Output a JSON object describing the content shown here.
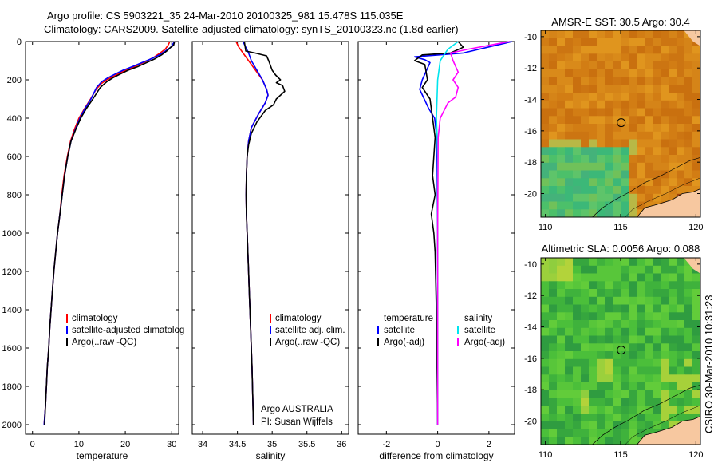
{
  "title": {
    "line1": "Argo profile: CS 5903221_35 24-Mar-2010 20100325_981 15.478S 115.035E",
    "line2": "Climatology: CARS2009. Satellite-adjusted climatology: synTS_20100323.nc (1.8d earlier)"
  },
  "colors": {
    "climatology": "#ff0000",
    "satellite": "#0000ff",
    "argo": "#000000",
    "satellite_salinity": "#00e5ee",
    "argo_salinity": "#ff00ff",
    "land": "#f7c8a0"
  },
  "depth_axis": {
    "ylim": [
      0,
      2050
    ],
    "ticks": [
      0,
      200,
      400,
      600,
      800,
      1000,
      1200,
      1400,
      1600,
      1800,
      2000
    ],
    "inverted": true
  },
  "chart_data": [
    {
      "type": "line",
      "id": "temperature",
      "xlabel": "temperature",
      "xlim": [
        -1.5,
        31.5
      ],
      "xticks": [
        0,
        10,
        20,
        30
      ],
      "xtick_labels": [
        "0",
        "10",
        "20",
        "30"
      ],
      "legend": [
        "climatology",
        "satellite-adjusted climatolog",
        "Argo(..raw -QC)"
      ],
      "series": [
        {
          "name": "climatology",
          "color": "#ff0000",
          "x": [
            29.6,
            29.2,
            28.6,
            27.5,
            26.3,
            24.8,
            23.0,
            21.2,
            19.2,
            17.6,
            16.0,
            14.8,
            13.7,
            12.5,
            11.2,
            10.0,
            9.0,
            8.2,
            7.5,
            6.8,
            6.3,
            5.9,
            5.4,
            5.0,
            4.6,
            4.3,
            4.0,
            3.7,
            3.5,
            3.2,
            3.0,
            2.8,
            2.5
          ],
          "y": [
            0,
            20,
            40,
            60,
            80,
            100,
            120,
            140,
            160,
            180,
            200,
            220,
            250,
            300,
            350,
            400,
            460,
            520,
            600,
            700,
            800,
            900,
            1000,
            1100,
            1200,
            1300,
            1400,
            1500,
            1600,
            1700,
            1800,
            1900,
            2000
          ]
        },
        {
          "name": "satellite-adjusted climatology",
          "color": "#0000ff",
          "x": [
            30.6,
            30.2,
            29.8,
            28.6,
            27.3,
            25.6,
            23.6,
            21.6,
            19.5,
            17.8,
            16.2,
            14.9,
            13.8,
            12.6,
            11.3,
            10.2,
            9.2,
            8.3,
            7.6,
            6.9,
            6.4,
            5.9,
            5.4,
            5.0,
            4.6,
            4.3,
            4.0,
            3.7,
            3.5,
            3.2,
            3.0,
            2.8,
            2.5
          ],
          "y": [
            0,
            15,
            30,
            50,
            70,
            90,
            110,
            130,
            150,
            170,
            190,
            210,
            240,
            300,
            350,
            400,
            460,
            520,
            600,
            700,
            800,
            900,
            1000,
            1100,
            1200,
            1300,
            1400,
            1500,
            1600,
            1700,
            1800,
            1900,
            2000
          ]
        },
        {
          "name": "Argo(..raw -QC)",
          "color": "#000000",
          "x": [
            30.6,
            30.5,
            30.4,
            29.8,
            28.9,
            27.8,
            26.4,
            24.6,
            22.8,
            20.6,
            18.9,
            17.3,
            16.0,
            14.6,
            13.0,
            11.6,
            10.4,
            9.3,
            8.3,
            7.6,
            6.9,
            6.4,
            5.9,
            5.4,
            5.0,
            4.6,
            4.3,
            4.0,
            3.7,
            3.5,
            3.2,
            3.0,
            2.8,
            2.6
          ],
          "y": [
            0,
            10,
            20,
            30,
            50,
            70,
            90,
            110,
            130,
            150,
            170,
            190,
            210,
            240,
            300,
            350,
            400,
            460,
            520,
            600,
            700,
            800,
            900,
            1000,
            1100,
            1200,
            1300,
            1400,
            1500,
            1600,
            1700,
            1800,
            1900,
            2000
          ]
        }
      ]
    },
    {
      "type": "line",
      "id": "salinity",
      "xlabel": "salinity",
      "xlim": [
        33.85,
        36.1
      ],
      "xticks": [
        34,
        34.5,
        35,
        35.5,
        36
      ],
      "xtick_labels": [
        "34",
        "34.5",
        "35",
        "35.5",
        "36"
      ],
      "legend": [
        "climatology",
        "satellite adj. clim.",
        "Argo(..raw -QC)"
      ],
      "credit_line1": "Argo AUSTRALIA",
      "credit_line2": "PI: Susan Wijffels",
      "series": [
        {
          "name": "climatology",
          "color": "#ff0000",
          "x": [
            34.48,
            34.52,
            34.58,
            34.66,
            34.76,
            34.86,
            34.92,
            34.94,
            34.9,
            34.8,
            34.7,
            34.66,
            34.64,
            34.63,
            34.625,
            34.63,
            34.64,
            34.65,
            34.66,
            34.67,
            34.69,
            34.7,
            34.71,
            34.72,
            34.73
          ],
          "y": [
            0,
            30,
            60,
            100,
            150,
            200,
            250,
            280,
            320,
            380,
            450,
            520,
            600,
            700,
            800,
            900,
            1000,
            1100,
            1200,
            1300,
            1500,
            1600,
            1700,
            1850,
            2000
          ]
        },
        {
          "name": "satellite adj. clim.",
          "color": "#0000ff",
          "x": [
            34.58,
            34.62,
            34.66,
            34.7,
            34.78,
            34.86,
            34.92,
            34.94,
            34.9,
            34.8,
            34.7,
            34.66,
            34.64,
            34.63,
            34.625,
            34.63,
            34.64,
            34.65,
            34.66,
            34.67,
            34.69,
            34.7,
            34.71,
            34.72,
            34.73
          ],
          "y": [
            0,
            30,
            60,
            100,
            150,
            200,
            250,
            280,
            320,
            380,
            450,
            520,
            600,
            700,
            800,
            900,
            1000,
            1100,
            1200,
            1300,
            1500,
            1600,
            1700,
            1850,
            2000
          ]
        },
        {
          "name": "Argo(..raw -QC)",
          "color": "#000000",
          "x": [
            34.6,
            34.62,
            34.75,
            34.92,
            34.95,
            35.0,
            35.05,
            35.12,
            35.06,
            35.15,
            35.18,
            35.06,
            35.02,
            34.9,
            34.78,
            34.7,
            34.66,
            34.64,
            34.63,
            34.625,
            34.63,
            34.64,
            34.66,
            34.67,
            34.69,
            34.7,
            34.71,
            34.72,
            34.73
          ],
          "y": [
            0,
            50,
            60,
            75,
            100,
            150,
            175,
            200,
            215,
            230,
            260,
            300,
            330,
            360,
            420,
            480,
            540,
            600,
            700,
            800,
            900,
            1000,
            1200,
            1300,
            1500,
            1600,
            1700,
            1850,
            2000
          ]
        }
      ]
    },
    {
      "type": "line",
      "id": "difference",
      "xlabel": "difference from climatology",
      "xlim": [
        -3.1,
        3.0
      ],
      "xticks": [
        -2,
        0,
        2
      ],
      "xtick_labels": [
        "-2",
        "0",
        "2"
      ],
      "legend_temperature": [
        "temperature",
        "satellite",
        "Argo(-adj)"
      ],
      "legend_salinity": [
        "salinity",
        "satellite",
        "Argo(-adj)"
      ],
      "series": [
        {
          "name": "temperature satellite",
          "color": "#0000ff",
          "x": [
            2.9,
            1.0,
            -0.9,
            -0.5,
            -0.3,
            -0.6,
            -0.7,
            -0.35,
            -0.12,
            -0.03,
            -0.02,
            0.0,
            0.0,
            0.0,
            0.0
          ],
          "y": [
            0,
            60,
            80,
            95,
            110,
            200,
            250,
            350,
            400,
            500,
            700,
            1000,
            1400,
            1800,
            2000
          ]
        },
        {
          "name": "temperature Argo(-adj)",
          "color": "#000000",
          "x": [
            0.8,
            1.0,
            0.5,
            -0.6,
            -0.9,
            -0.5,
            -0.4,
            -0.6,
            -0.3,
            -0.2,
            -0.1,
            -0.2,
            -0.1,
            -0.25,
            -0.15,
            -0.1,
            -0.05,
            0.0
          ],
          "y": [
            0,
            30,
            60,
            70,
            100,
            120,
            200,
            240,
            300,
            400,
            500,
            700,
            800,
            900,
            1000,
            1100,
            1400,
            2000
          ]
        },
        {
          "name": "salinity satellite",
          "color": "#00e5ee",
          "x": [
            0.8,
            0.4,
            0.1,
            0.0,
            -0.05,
            -0.02,
            0.0,
            0.0,
            0.0,
            0.0
          ],
          "y": [
            0,
            40,
            100,
            200,
            400,
            500,
            600,
            1000,
            1500,
            2000
          ]
        },
        {
          "name": "salinity Argo(-adj)",
          "color": "#ff00ff",
          "x": [
            2.8,
            2.0,
            1.2,
            0.5,
            0.6,
            0.8,
            0.6,
            0.8,
            0.7,
            0.4,
            0.1,
            0.02,
            0.0,
            0.0
          ],
          "y": [
            0,
            20,
            40,
            60,
            100,
            160,
            200,
            240,
            290,
            320,
            400,
            500,
            1000,
            2000
          ]
        }
      ]
    },
    {
      "type": "heatmap",
      "id": "sst_map",
      "title": "AMSR-E SST: 30.5 Argo: 30.4",
      "xlim": [
        109.7,
        120.3
      ],
      "ylim": [
        -21.5,
        -9.6
      ],
      "xticks": [
        110,
        115,
        120
      ],
      "xtick_labels": [
        "110",
        "115",
        "120"
      ],
      "yticks": [
        -10,
        -12,
        -14,
        -16,
        -18,
        -20
      ],
      "ytick_labels": [
        "-10",
        "-12",
        "-14",
        "-16",
        "-18",
        "-20"
      ],
      "float_position": [
        115.035,
        -15.478
      ]
    },
    {
      "type": "heatmap",
      "id": "sla_map",
      "title": "Altimetric SLA: 0.0056 Argo: 0.088",
      "xlim": [
        109.7,
        120.3
      ],
      "ylim": [
        -21.5,
        -9.6
      ],
      "xticks": [
        110,
        115,
        120
      ],
      "xtick_labels": [
        "110",
        "115",
        "120"
      ],
      "yticks": [
        -10,
        -12,
        -14,
        -16,
        -18,
        -20
      ],
      "ytick_labels": [
        "-10",
        "-12",
        "-14",
        "-16",
        "-18",
        "-20"
      ],
      "float_position": [
        115.035,
        -15.478
      ]
    }
  ],
  "footer_stamp": "CSIRO 30-Mar-2010 10:31:23"
}
